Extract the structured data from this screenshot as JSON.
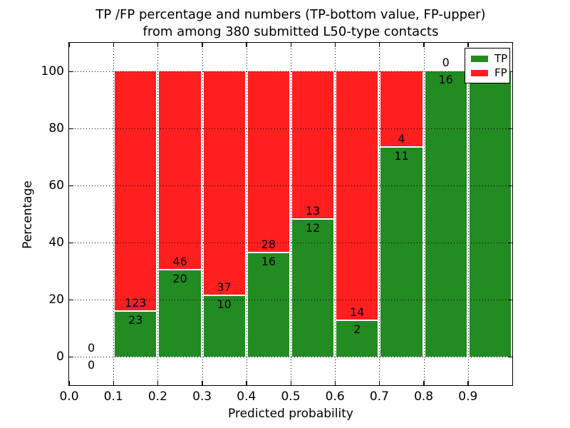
{
  "chart_data": {
    "type": "bar",
    "stacked": true,
    "normalized": "each bin scaled to 100%",
    "title": "TP /FP percentage and numbers (TP-bottom value, FP-upper)\nfrom among 380 submitted L50-type contacts",
    "xlabel": "Predicted probability",
    "ylabel": "Percentage",
    "xlim": [
      0.0,
      1.0
    ],
    "ylim": [
      -10,
      110
    ],
    "x_ticks": [
      "0.0",
      "0.1",
      "0.2",
      "0.3",
      "0.4",
      "0.5",
      "0.6",
      "0.7",
      "0.8",
      "0.9"
    ],
    "y_ticks": [
      "0",
      "20",
      "40",
      "60",
      "80",
      "100"
    ],
    "grid": {
      "style": "dotted",
      "color": "#000000"
    },
    "bins": [
      [
        0.0,
        0.1
      ],
      [
        0.1,
        0.2
      ],
      [
        0.2,
        0.3
      ],
      [
        0.3,
        0.4
      ],
      [
        0.4,
        0.5
      ],
      [
        0.5,
        0.6
      ],
      [
        0.6,
        0.7
      ],
      [
        0.7,
        0.8
      ],
      [
        0.8,
        0.9
      ],
      [
        0.9,
        1.0
      ]
    ],
    "series": [
      {
        "name": "TP",
        "color": "#228b22",
        "values": [
          0,
          23,
          20,
          10,
          16,
          12,
          2,
          11,
          16,
          5
        ]
      },
      {
        "name": "FP",
        "color": "#ff1f1f",
        "values": [
          0,
          123,
          46,
          37,
          28,
          13,
          14,
          4,
          0,
          0
        ]
      }
    ],
    "bar_edge_color": "#ffffff",
    "legend": {
      "position": "upper right",
      "entries": [
        "TP",
        "FP"
      ]
    }
  }
}
